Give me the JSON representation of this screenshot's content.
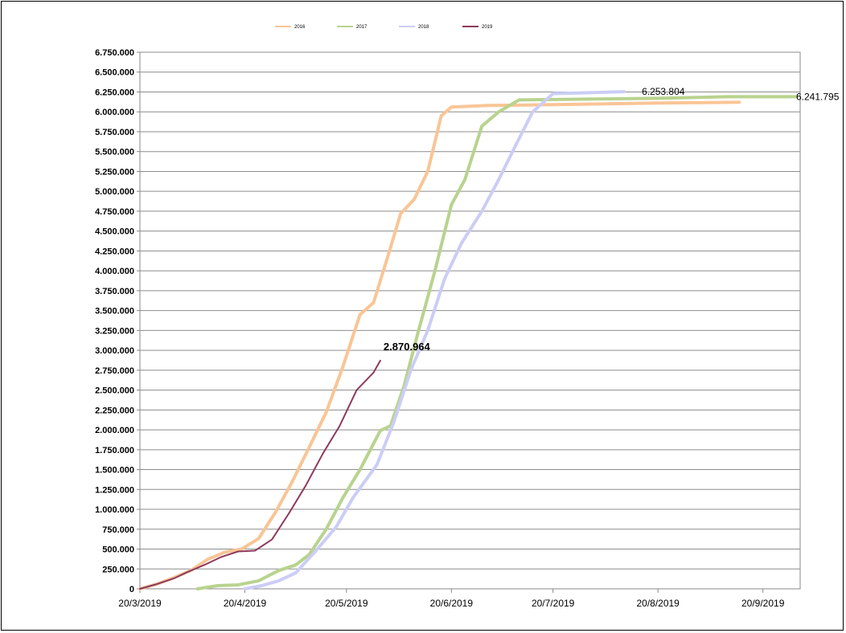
{
  "chart_data": {
    "type": "line",
    "title": "",
    "xlabel": "",
    "ylabel": "",
    "x_axis": {
      "min": "2019-03-20",
      "max": "2019-10-01",
      "tick_labels": [
        "20/3/2019",
        "20/4/2019",
        "20/5/2019",
        "20/6/2019",
        "20/7/2019",
        "20/8/2019",
        "20/9/2019"
      ],
      "tick_dates": [
        "2019-03-20",
        "2019-04-20",
        "2019-05-20",
        "2019-06-20",
        "2019-07-20",
        "2019-08-20",
        "2019-09-20"
      ]
    },
    "y_axis": {
      "min": 0,
      "max": 6750000,
      "step": 250000,
      "tick_labels": [
        "0",
        "250.000",
        "500.000",
        "750.000",
        "1.000.000",
        "1.250.000",
        "1.500.000",
        "1.750.000",
        "2.000.000",
        "2.250.000",
        "2.500.000",
        "2.750.000",
        "3.000.000",
        "3.250.000",
        "3.500.000",
        "3.750.000",
        "4.000.000",
        "4.250.000",
        "4.500.000",
        "4.750.000",
        "5.000.000",
        "5.250.000",
        "5.500.000",
        "5.750.000",
        "6.000.000",
        "6.250.000",
        "6.500.000",
        "6.750.000"
      ]
    },
    "grid": true,
    "legend_position": "top",
    "series": [
      {
        "name": "2016",
        "color": "#f9c596",
        "points": [
          [
            "2019-03-20",
            0
          ],
          [
            "2019-03-25",
            60000
          ],
          [
            "2019-03-30",
            140000
          ],
          [
            "2019-04-04",
            230000
          ],
          [
            "2019-04-09",
            370000
          ],
          [
            "2019-04-14",
            460000
          ],
          [
            "2019-04-19",
            500000
          ],
          [
            "2019-04-24",
            630000
          ],
          [
            "2019-04-29",
            960000
          ],
          [
            "2019-05-04",
            1350000
          ],
          [
            "2019-05-09",
            1780000
          ],
          [
            "2019-05-14",
            2220000
          ],
          [
            "2019-05-19",
            2800000
          ],
          [
            "2019-05-24",
            3450000
          ],
          [
            "2019-05-28",
            3600000
          ],
          [
            "2019-06-01",
            4150000
          ],
          [
            "2019-06-05",
            4720000
          ],
          [
            "2019-06-09",
            4900000
          ],
          [
            "2019-06-13",
            5250000
          ],
          [
            "2019-06-17",
            5950000
          ],
          [
            "2019-06-20",
            6060000
          ],
          [
            "2019-07-01",
            6080000
          ],
          [
            "2019-07-20",
            6090000
          ],
          [
            "2019-08-20",
            6110000
          ],
          [
            "2019-09-13",
            6120000
          ]
        ]
      },
      {
        "name": "2017",
        "color": "#b8d38e",
        "points": [
          [
            "2019-04-06",
            0
          ],
          [
            "2019-04-12",
            40000
          ],
          [
            "2019-04-18",
            50000
          ],
          [
            "2019-04-24",
            100000
          ],
          [
            "2019-04-30",
            230000
          ],
          [
            "2019-05-05",
            300000
          ],
          [
            "2019-05-09",
            430000
          ],
          [
            "2019-05-14",
            750000
          ],
          [
            "2019-05-19",
            1150000
          ],
          [
            "2019-05-24",
            1500000
          ],
          [
            "2019-05-30",
            1990000
          ],
          [
            "2019-06-02",
            2050000
          ],
          [
            "2019-06-06",
            2550000
          ],
          [
            "2019-06-10",
            3200000
          ],
          [
            "2019-06-15",
            3980000
          ],
          [
            "2019-06-20",
            4830000
          ],
          [
            "2019-06-24",
            5150000
          ],
          [
            "2019-06-29",
            5820000
          ],
          [
            "2019-07-04",
            6000000
          ],
          [
            "2019-07-10",
            6150000
          ],
          [
            "2019-07-30",
            6160000
          ],
          [
            "2019-08-20",
            6170000
          ],
          [
            "2019-09-10",
            6190000
          ],
          [
            "2019-09-30",
            6190000
          ]
        ]
      },
      {
        "name": "2018",
        "color": "#cccdf5",
        "points": [
          [
            "2019-04-20",
            0
          ],
          [
            "2019-04-25",
            40000
          ],
          [
            "2019-04-30",
            100000
          ],
          [
            "2019-05-05",
            200000
          ],
          [
            "2019-05-11",
            480000
          ],
          [
            "2019-05-17",
            780000
          ],
          [
            "2019-05-22",
            1150000
          ],
          [
            "2019-05-29",
            1560000
          ],
          [
            "2019-06-03",
            2100000
          ],
          [
            "2019-06-08",
            2750000
          ],
          [
            "2019-06-13",
            3250000
          ],
          [
            "2019-06-18",
            3900000
          ],
          [
            "2019-06-23",
            4350000
          ],
          [
            "2019-06-29",
            4750000
          ],
          [
            "2019-07-04",
            5150000
          ],
          [
            "2019-07-09",
            5580000
          ],
          [
            "2019-07-14",
            6000000
          ],
          [
            "2019-07-20",
            6230000
          ],
          [
            "2019-07-30",
            6240000
          ],
          [
            "2019-08-10",
            6253804
          ]
        ]
      },
      {
        "name": "2019",
        "color": "#8e3a5e",
        "points": [
          [
            "2019-03-20",
            0
          ],
          [
            "2019-03-25",
            60000
          ],
          [
            "2019-03-30",
            130000
          ],
          [
            "2019-04-03",
            210000
          ],
          [
            "2019-04-08",
            300000
          ],
          [
            "2019-04-13",
            400000
          ],
          [
            "2019-04-18",
            470000
          ],
          [
            "2019-04-23",
            480000
          ],
          [
            "2019-04-28",
            620000
          ],
          [
            "2019-05-03",
            950000
          ],
          [
            "2019-05-08",
            1300000
          ],
          [
            "2019-05-13",
            1700000
          ],
          [
            "2019-05-18",
            2050000
          ],
          [
            "2019-05-23",
            2500000
          ],
          [
            "2019-05-28",
            2720000
          ],
          [
            "2019-05-30",
            2870964
          ]
        ]
      }
    ],
    "annotations": [
      {
        "text": "2.870.964",
        "series": "2019",
        "date": "2019-05-30",
        "value": 2870964,
        "bold": true
      },
      {
        "text": "6.253.804",
        "series": "2018",
        "date": "2019-08-10",
        "value": 6253804,
        "bold": false
      },
      {
        "text": "6.241.795",
        "series": "2017",
        "date": "2019-09-30",
        "value": 6190000,
        "bold": false
      }
    ]
  }
}
